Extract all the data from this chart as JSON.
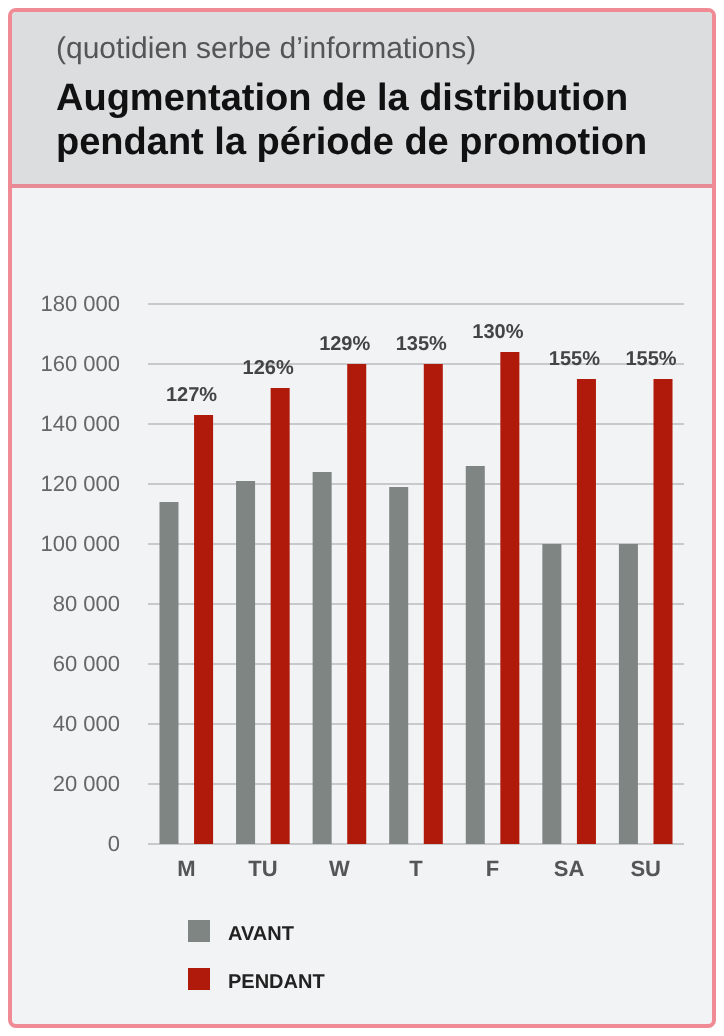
{
  "chart_data": {
    "type": "bar",
    "subtitle": "(quotidien serbe d’informations)",
    "title": "Augmentation de la distribution pendant la période de promotion",
    "categories": [
      "M",
      "TU",
      "W",
      "T",
      "F",
      "SA",
      "SU"
    ],
    "series": [
      {
        "name": "AVANT",
        "color": "#7f8582",
        "values": [
          114000,
          121000,
          124000,
          119000,
          126000,
          100000,
          100000
        ]
      },
      {
        "name": "PENDANT",
        "color": "#b01a0a",
        "values": [
          143000,
          152000,
          160000,
          160000,
          164000,
          155000,
          155000
        ]
      }
    ],
    "annotations": [
      {
        "text": "127%",
        "x": "M",
        "y": 143000
      },
      {
        "text": "126%",
        "x": "TU",
        "y": 152000
      },
      {
        "text": "129%",
        "x": "W",
        "y": 160000
      },
      {
        "text": "135%",
        "x": "T",
        "y": 160000
      },
      {
        "text": "130%",
        "x": "F",
        "y": 164000
      },
      {
        "text": "155%",
        "x": "SA",
        "y": 155000
      },
      {
        "text": "155%",
        "x": "SU",
        "y": 155000
      }
    ],
    "ylim": [
      0,
      180000
    ],
    "yticks": [
      {
        "value": 0,
        "label": "0"
      },
      {
        "value": 20000,
        "label": "20 000"
      },
      {
        "value": 40000,
        "label": "40 000"
      },
      {
        "value": 60000,
        "label": "60 000"
      },
      {
        "value": 80000,
        "label": "80 000"
      },
      {
        "value": 100000,
        "label": "100 000"
      },
      {
        "value": 120000,
        "label": "120 000"
      },
      {
        "value": 140000,
        "label": "140 000"
      },
      {
        "value": 160000,
        "label": "160 000"
      },
      {
        "value": 180000,
        "label": "180 000"
      }
    ],
    "grid": "y",
    "legend": "bottom left"
  }
}
